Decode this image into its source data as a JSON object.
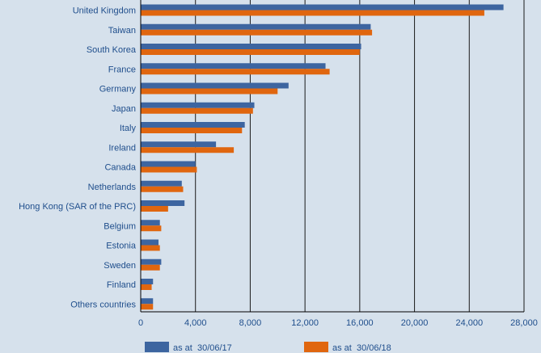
{
  "chart_data": {
    "type": "bar",
    "orientation": "horizontal",
    "categories": [
      "United Kingdom",
      "Taiwan",
      "South Korea",
      "France",
      "Germany",
      "Japan",
      "Italy",
      "Ireland",
      "Canada",
      "Netherlands",
      "Hong Kong (SAR of the PRC)",
      "Belgium",
      "Estonia",
      "Sweden",
      "Finland",
      "Others countries"
    ],
    "series": [
      {
        "name": "as at  30/06/17",
        "color": "#3d65a0",
        "values": [
          26500,
          16800,
          16100,
          13500,
          10800,
          8300,
          7600,
          5500,
          4000,
          3000,
          3200,
          1400,
          1300,
          1500,
          900,
          900
        ]
      },
      {
        "name": "as at  30/06/18",
        "color": "#e0660f",
        "values": [
          25100,
          16900,
          16000,
          13800,
          10000,
          8200,
          7400,
          6800,
          4100,
          3100,
          2000,
          1500,
          1400,
          1400,
          800,
          900
        ]
      }
    ],
    "xlim": [
      0,
      28000
    ],
    "xticks": [
      "0",
      "4,000",
      "8,000",
      "12,000",
      "16,000",
      "20,000",
      "24,000",
      "28,000"
    ],
    "grid": true,
    "legend": "bottom"
  }
}
